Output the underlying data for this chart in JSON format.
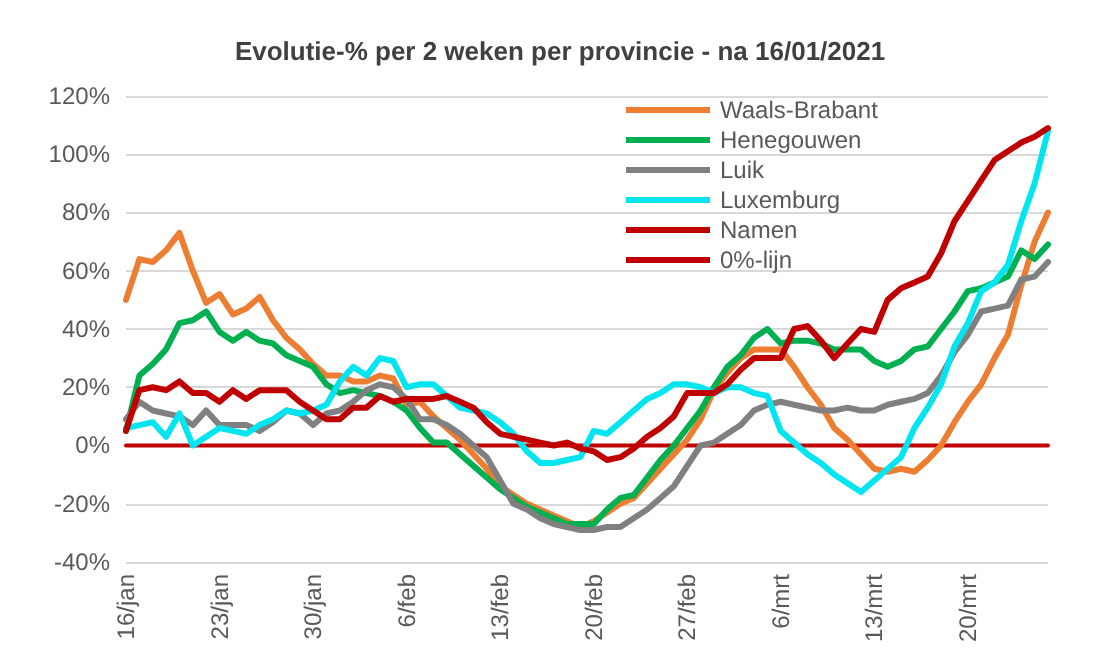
{
  "chart_data": {
    "type": "line",
    "title": "Evolutie-% per 2 weken per provincie - na 16/01/2021",
    "categories": [
      "16/jan",
      null,
      null,
      null,
      null,
      null,
      null,
      "23/jan",
      null,
      null,
      null,
      null,
      null,
      null,
      "30/jan",
      null,
      null,
      null,
      null,
      null,
      null,
      "6/feb",
      null,
      null,
      null,
      null,
      null,
      null,
      "13/feb",
      null,
      null,
      null,
      null,
      null,
      null,
      "20/feb",
      null,
      null,
      null,
      null,
      null,
      null,
      "27/feb",
      null,
      null,
      null,
      null,
      null,
      null,
      "6/mrt",
      null,
      null,
      null,
      null,
      null,
      null,
      "13/mrt",
      null,
      null,
      null,
      null,
      null,
      null,
      "20/mrt",
      null,
      null,
      null,
      null,
      null,
      null
    ],
    "series": [
      {
        "name": "Waals-Brabant",
        "color": "#ed7d31",
        "values": [
          50,
          64,
          63,
          67,
          73,
          60,
          49,
          52,
          45,
          47,
          51,
          43,
          37,
          33,
          28,
          24,
          24,
          22,
          22,
          24,
          23,
          14,
          15,
          10,
          6,
          2,
          -3,
          -8,
          -14,
          -17,
          -20,
          -22,
          -24,
          -26,
          -28,
          -26,
          -23,
          -20,
          -18,
          -13,
          -8,
          -3,
          2,
          9,
          19,
          25,
          30,
          33,
          33,
          33,
          27,
          20,
          14,
          6,
          2,
          -3,
          -8,
          -9,
          -8,
          -9,
          -5,
          0,
          8,
          15,
          21,
          30,
          38,
          55,
          70,
          80
        ]
      },
      {
        "name": "Henegouwen",
        "color": "#00b050",
        "values": [
          5,
          24,
          28,
          33,
          42,
          43,
          46,
          39,
          36,
          39,
          36,
          35,
          31,
          29,
          27,
          21,
          18,
          19,
          18,
          17,
          15,
          12,
          6,
          1,
          1,
          -3,
          -7,
          -11,
          -15,
          -18,
          -21,
          -23,
          -25,
          -27,
          -27,
          -27,
          -22,
          -18,
          -17,
          -11,
          -5,
          0,
          6,
          12,
          20,
          27,
          31,
          37,
          40,
          35,
          36,
          36,
          35,
          33,
          33,
          33,
          29,
          27,
          29,
          33,
          34,
          40,
          46,
          53,
          54,
          56,
          58,
          67,
          64,
          69
        ]
      },
      {
        "name": "Luik",
        "color": "#808080",
        "values": [
          9,
          15,
          12,
          11,
          10,
          7,
          12,
          7,
          7,
          7,
          5,
          8,
          12,
          11,
          7,
          11,
          12,
          15,
          19,
          21,
          20,
          16,
          9,
          9,
          7,
          4,
          0,
          -4,
          -12,
          -20,
          -22,
          -25,
          -27,
          -28,
          -29,
          -29,
          -28,
          -28,
          -25,
          -22,
          -18,
          -14,
          -7,
          0,
          1,
          4,
          7,
          12,
          14,
          15,
          14,
          13,
          12,
          12,
          13,
          12,
          12,
          14,
          15,
          16,
          18,
          24,
          32,
          38,
          46,
          47,
          48,
          57,
          58,
          63
        ]
      },
      {
        "name": "Luxemburg",
        "color": "#00e5f0",
        "values": [
          6,
          7,
          8,
          3,
          11,
          0,
          3,
          6,
          5,
          4,
          7,
          9,
          12,
          11,
          12,
          14,
          22,
          27,
          24,
          30,
          29,
          20,
          21,
          21,
          17,
          13,
          12,
          11,
          8,
          4,
          -2,
          -6,
          -6,
          -5,
          -4,
          5,
          4,
          8,
          12,
          16,
          18,
          21,
          21,
          20,
          18,
          20,
          20,
          18,
          17,
          5,
          1,
          -3,
          -6,
          -10,
          -13,
          -16,
          -12,
          -8,
          -4,
          6,
          13,
          21,
          34,
          42,
          53,
          56,
          62,
          77,
          90,
          108
        ]
      },
      {
        "name": "Namen",
        "color": "#c00000",
        "values": [
          5,
          19,
          20,
          19,
          22,
          18,
          18,
          15,
          19,
          16,
          19,
          19,
          19,
          15,
          12,
          9,
          9,
          13,
          13,
          17,
          15,
          16,
          16,
          16,
          17,
          15,
          13,
          8,
          4,
          3,
          2,
          1,
          0,
          1,
          -1,
          -2,
          -5,
          -4,
          -1,
          3,
          6,
          10,
          18,
          18,
          18,
          21,
          26,
          30,
          30,
          30,
          40,
          41,
          36,
          30,
          35,
          40,
          39,
          50,
          54,
          56,
          58,
          66,
          77,
          84,
          91,
          98,
          101,
          104,
          106,
          109
        ]
      },
      {
        "name": "0%-lijn",
        "color": "#c00000",
        "values": [
          0,
          0,
          0,
          0,
          0,
          0,
          0,
          0,
          0,
          0,
          0,
          0,
          0,
          0,
          0,
          0,
          0,
          0,
          0,
          0,
          0,
          0,
          0,
          0,
          0,
          0,
          0,
          0,
          0,
          0,
          0,
          0,
          0,
          0,
          0,
          0,
          0,
          0,
          0,
          0,
          0,
          0,
          0,
          0,
          0,
          0,
          0,
          0,
          0,
          0,
          0,
          0,
          0,
          0,
          0,
          0,
          0,
          0,
          0,
          0,
          0,
          0,
          0,
          0,
          0,
          0,
          0,
          0,
          0,
          0
        ]
      }
    ],
    "ylim": [
      -40,
      120
    ],
    "yticks": [
      {
        "value": -40,
        "label": "-40%"
      },
      {
        "value": -20,
        "label": "-20%"
      },
      {
        "value": 0,
        "label": "0%"
      },
      {
        "value": 20,
        "label": "20%"
      },
      {
        "value": 40,
        "label": "40%"
      },
      {
        "value": 60,
        "label": "60%"
      },
      {
        "value": 80,
        "label": "80%"
      },
      {
        "value": 100,
        "label": "100%"
      },
      {
        "value": 120,
        "label": "120%"
      }
    ],
    "grid": "y",
    "legend": "top right",
    "marker": "none",
    "line_style": "solid"
  }
}
